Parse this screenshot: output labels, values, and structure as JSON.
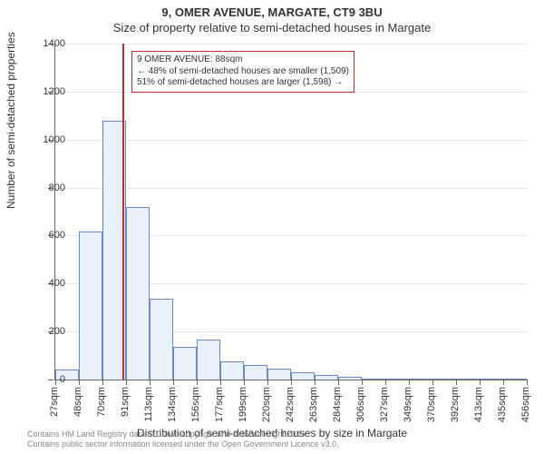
{
  "title": "9, OMER AVENUE, MARGATE, CT9 3BU",
  "subtitle": "Size of property relative to semi-detached houses in Margate",
  "y_axis": {
    "title": "Number of semi-detached properties",
    "min": 0,
    "max": 1400,
    "ticks": [
      0,
      200,
      400,
      600,
      800,
      1000,
      1200,
      1400
    ]
  },
  "x_axis": {
    "title": "Distribution of semi-detached houses by size in Margate",
    "ticks": [
      "27sqm",
      "48sqm",
      "70sqm",
      "91sqm",
      "113sqm",
      "134sqm",
      "156sqm",
      "177sqm",
      "199sqm",
      "220sqm",
      "242sqm",
      "263sqm",
      "284sqm",
      "306sqm",
      "327sqm",
      "349sqm",
      "370sqm",
      "392sqm",
      "413sqm",
      "435sqm",
      "456sqm"
    ]
  },
  "bars": {
    "values": [
      40,
      615,
      1080,
      720,
      335,
      135,
      165,
      75,
      60,
      45,
      30,
      18,
      12,
      0,
      0,
      0,
      0,
      0,
      0,
      0
    ],
    "fill_color": "#e9f1fb",
    "edge_color": "#6b8abf"
  },
  "reference_line": {
    "value": 88,
    "color": "#c03030",
    "x_range_start": 27,
    "x_range_end": 456
  },
  "annotation": {
    "border_color": "#c03030",
    "lines": [
      "9 OMER AVENUE: 88sqm",
      "← 48% of semi-detached houses are smaller (1,509)",
      "51% of semi-detached houses are larger (1,598) →"
    ]
  },
  "attribution": [
    "Contains HM Land Registry data © Crown copyright and database right 2025.",
    "Contains public sector information licensed under the Open Government Licence v3.0."
  ],
  "style": {
    "grid_color": "#e5e5e5",
    "axis_color": "#666666",
    "text_color": "#333333",
    "background": "#ffffff"
  }
}
